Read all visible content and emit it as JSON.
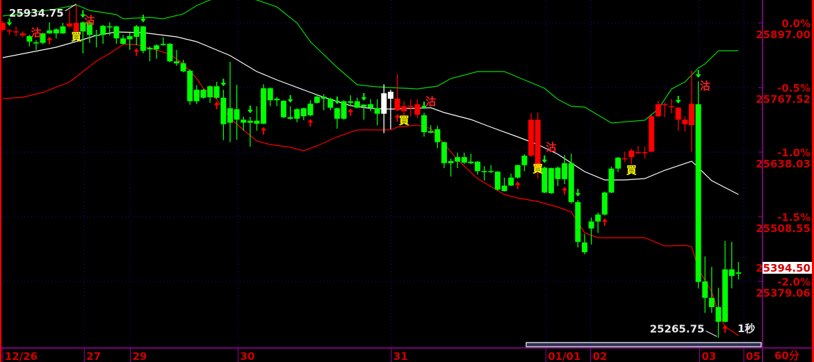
{
  "toolbar": {
    "timeframe_label": "60分",
    "tick_interval_label": "1秒"
  },
  "price_axis": {
    "levels": [
      {
        "pct": "0.0%",
        "price": "25897.00",
        "value": 25897.0
      },
      {
        "pct": "-0.5%",
        "price": "25767.52",
        "value": 25767.52
      },
      {
        "pct": "-1.0%",
        "price": "25638.03",
        "value": 25638.03
      },
      {
        "pct": "-1.5%",
        "price": "25508.55",
        "value": 25508.55
      },
      {
        "pct": "-2.0%",
        "price": "25379.06",
        "value": 25379.06
      }
    ],
    "current_price": "25394.50",
    "current_value": 25394.5
  },
  "chart_data": {
    "type": "candlestick",
    "ylim": [
      25246.7,
      25942.9
    ],
    "xlim": [
      -0.4,
      113.5
    ],
    "grid": true,
    "colors": {
      "up": "#ff0000",
      "down": "#00ff00",
      "special": "#ffffff",
      "upper_band": "#00dd00",
      "middle_band": "#ffffff",
      "lower_band": "#ff0000",
      "sell_label": "#ff2020",
      "buy_label": "#ffff00",
      "axis_text": "#d00000",
      "frame": "#a000a0",
      "grid": "#1010c0"
    },
    "date_labels": [
      {
        "label": "12/26",
        "index": 0
      },
      {
        "label": "27",
        "index": 12.2
      },
      {
        "label": "29",
        "index": 19.1
      },
      {
        "label": "30",
        "index": 35.2
      },
      {
        "label": "31",
        "index": 58.1
      },
      {
        "label": "01/01",
        "index": 81.2
      },
      {
        "label": "02",
        "index": 87.9
      },
      {
        "label": "03",
        "index": 104.2
      },
      {
        "label": "05",
        "index": 110.8
      }
    ],
    "candle_fields": [
      "open",
      "high",
      "low",
      "close"
    ],
    "candles": [
      [
        25883,
        25901,
        25880,
        25897
      ],
      [
        25881,
        25884,
        25873,
        25882
      ],
      [
        25879.5,
        25889,
        25870.5,
        25880
      ],
      [
        25872,
        25880,
        25868,
        25876
      ],
      [
        25870.5,
        25873,
        25850,
        25859.5
      ],
      [
        25858,
        25862,
        25843,
        25857
      ],
      [
        25876,
        25877,
        25854,
        25857
      ],
      [
        25882,
        25898,
        25875,
        25876
      ],
      [
        25884,
        25886,
        25866,
        25876
      ],
      [
        25890,
        25897,
        25875,
        25876
      ],
      [
        25890,
        25923,
        25887,
        25896
      ],
      [
        25880,
        25934.75,
        25879,
        25897
      ],
      [
        25898,
        25900,
        25836,
        25880
      ],
      [
        25898,
        25900,
        25857,
        25873
      ],
      [
        25873,
        25883,
        25848,
        25872
      ],
      [
        25891,
        25893,
        25855,
        25873
      ],
      [
        25890,
        25898,
        25872,
        25889
      ],
      [
        25890,
        25891,
        25855,
        25866
      ],
      [
        25866,
        25873,
        25854,
        25855
      ],
      [
        25870.5,
        25877,
        25843,
        25864
      ],
      [
        25890,
        25893,
        25852,
        25869
      ],
      [
        25890,
        25891,
        25836,
        25841
      ],
      [
        25847,
        25850,
        25820,
        25844
      ],
      [
        25852,
        25854,
        25825,
        25844
      ],
      [
        25855,
        25868,
        25851,
        25854
      ],
      [
        25855,
        25857,
        25818,
        25820
      ],
      [
        25820,
        25843,
        25811,
        25816
      ],
      [
        25816,
        25823,
        25798,
        25800
      ],
      [
        25801,
        25804,
        25733,
        25740
      ],
      [
        25763,
        25772,
        25734,
        25740
      ],
      [
        25763,
        25765,
        25745,
        25747
      ],
      [
        25770,
        25772,
        25737,
        25748
      ],
      [
        25770,
        25779,
        25745,
        25747
      ],
      [
        25747,
        25763,
        25662,
        25694
      ],
      [
        25726,
        25819,
        25658,
        25697
      ],
      [
        25724,
        25773,
        25663,
        25703
      ],
      [
        25703,
        25709,
        25681,
        25697
      ],
      [
        25701,
        25709,
        25649,
        25697
      ],
      [
        25701,
        25730,
        25681,
        25695
      ],
      [
        25766,
        25774,
        25694,
        25695
      ],
      [
        25766,
        25768,
        25730,
        25742
      ],
      [
        25745,
        25749,
        25730,
        25742
      ],
      [
        25741,
        25742,
        25706,
        25708
      ],
      [
        25708,
        25730,
        25703,
        25705
      ],
      [
        25724,
        25726,
        25698,
        25705
      ],
      [
        25726,
        25727,
        25702,
        25710
      ],
      [
        25735,
        25742,
        25710,
        25712
      ],
      [
        25749,
        25754,
        25735,
        25737
      ],
      [
        25749,
        25754,
        25722,
        25745
      ],
      [
        25745,
        25747,
        25722,
        25727
      ],
      [
        25726,
        25727,
        25685,
        25705
      ],
      [
        25740,
        25742,
        25703,
        25705
      ],
      [
        25740,
        25752,
        25731,
        25737
      ],
      [
        25740,
        25747,
        25726,
        25727
      ],
      [
        25733,
        25734,
        25703,
        25729
      ],
      [
        25734,
        25744,
        25720,
        25727
      ],
      [
        25726,
        25744,
        25692,
        25715
      ],
      [
        25715,
        25774,
        25676,
        25756
      ],
      [
        25745,
        25763,
        25684,
        25759
      ],
      [
        25722,
        25794,
        25720,
        25745
      ],
      [
        25720,
        25740,
        25709,
        25730
      ],
      [
        25730,
        25744,
        25710,
        25731
      ],
      [
        25713,
        25744,
        25706,
        25734
      ],
      [
        25712,
        25717,
        25669,
        25678
      ],
      [
        25680,
        25692,
        25676,
        25677
      ],
      [
        25684,
        25691,
        25646,
        25658
      ],
      [
        25658,
        25659,
        25606,
        25616
      ],
      [
        25620,
        25625,
        25589,
        25616
      ],
      [
        25628,
        25637,
        25606,
        25619
      ],
      [
        25628,
        25637,
        25614,
        25617
      ],
      [
        25619,
        25635,
        25614,
        25616
      ],
      [
        25619,
        25620,
        25593,
        25600
      ],
      [
        25600,
        25610,
        25581,
        25598
      ],
      [
        25600,
        25612,
        25596,
        25598
      ],
      [
        25599,
        25600,
        25561,
        25563
      ],
      [
        25571,
        25587,
        25559,
        25560
      ],
      [
        25587,
        25595,
        25570,
        25571
      ],
      [
        25612,
        25613,
        25585,
        25587
      ],
      [
        25631,
        25634,
        25600,
        25612
      ],
      [
        25631,
        25716,
        25628,
        25703
      ],
      [
        25606,
        25717,
        25585,
        25703
      ],
      [
        25607,
        25609,
        25556,
        25557
      ],
      [
        25606,
        25607,
        25554,
        25556
      ],
      [
        25607,
        25609,
        25570,
        25584
      ],
      [
        25616,
        25632,
        25574,
        25584
      ],
      [
        25616,
        25635,
        25535,
        25538
      ],
      [
        25538,
        25542,
        25447,
        25458
      ],
      [
        25457,
        25474,
        25433,
        25437.5
      ],
      [
        25499,
        25507,
        25453,
        25485
      ],
      [
        25513,
        25517,
        25476,
        25499
      ],
      [
        25557,
        25559,
        25511,
        25513
      ],
      [
        25605,
        25609,
        25556,
        25557
      ],
      [
        25627,
        25628,
        25598,
        25605
      ],
      [
        25625,
        25639,
        25618.5,
        25625.5
      ],
      [
        25628,
        25645,
        25614,
        25641
      ],
      [
        25637,
        25650.5,
        25635,
        25638
      ],
      [
        25637,
        25649,
        25625.5,
        25638
      ],
      [
        25639,
        25712,
        25638,
        25710
      ],
      [
        25710,
        25741,
        25708,
        25734
      ],
      [
        25733.5,
        25738,
        25708,
        25734
      ],
      [
        25729,
        25744,
        25716,
        25730
      ],
      [
        25703,
        25728.5,
        25681,
        25727
      ],
      [
        25694,
        25710,
        25680,
        25703
      ],
      [
        25692,
        25801,
        25639,
        25735
      ],
      [
        25734,
        25780,
        25365,
        25378
      ],
      [
        25379,
        25429,
        25316,
        25346
      ],
      [
        25346,
        25408,
        25316,
        25327.5
      ],
      [
        25327.5,
        25366.5,
        25265.75,
        25298
      ],
      [
        25403,
        25460,
        25297,
        25298
      ],
      [
        25403,
        25458,
        25365,
        25390
      ],
      [
        25397,
        25418,
        25383,
        25394.5
      ]
    ],
    "special_candles": [
      57,
      58
    ],
    "bands": {
      "upper": [
        [
          0,
          25910.9
        ],
        [
          5,
          25919.2
        ],
        [
          8,
          25924.8
        ],
        [
          11,
          25933.2
        ],
        [
          13,
          25922.0
        ],
        [
          17,
          25913.7
        ],
        [
          18,
          25905.3
        ],
        [
          22,
          25908.1
        ],
        [
          24,
          25905.3
        ],
        [
          27,
          25915.1
        ],
        [
          29,
          25931.8
        ],
        [
          31,
          25942.9
        ],
        [
          34,
          25956.8
        ],
        [
          38,
          25942.9
        ],
        [
          41,
          25929.0
        ],
        [
          44,
          25897.0
        ],
        [
          46,
          25859.4
        ],
        [
          50,
          25807.8
        ],
        [
          53,
          25773.0
        ],
        [
          56,
          25768.9
        ],
        [
          62,
          25764.7
        ],
        [
          65,
          25770.2
        ],
        [
          67,
          25785.6
        ],
        [
          71,
          25799.5
        ],
        [
          75,
          25799.5
        ],
        [
          78,
          25782.8
        ],
        [
          81,
          25766.1
        ],
        [
          83,
          25743.8
        ],
        [
          85,
          25729.9
        ],
        [
          87,
          25728.5
        ],
        [
          91,
          25696.5
        ],
        [
          96,
          25702.0
        ],
        [
          98,
          25724.3
        ],
        [
          100,
          25764.7
        ],
        [
          102,
          25778.6
        ],
        [
          104,
          25806.4
        ],
        [
          105,
          25814.8
        ],
        [
          107,
          25841.3
        ],
        [
          110,
          25841.3
        ]
      ],
      "middle": [
        [
          0,
          25827.3
        ],
        [
          8,
          25848.2
        ],
        [
          12,
          25863.5
        ],
        [
          14,
          25871.9
        ],
        [
          17,
          25878.9
        ],
        [
          21,
          25877.5
        ],
        [
          26,
          25869.1
        ],
        [
          29,
          25859.4
        ],
        [
          34,
          25831.5
        ],
        [
          38,
          25799.5
        ],
        [
          41,
          25782.8
        ],
        [
          46,
          25757.7
        ],
        [
          48,
          25748.0
        ],
        [
          52,
          25731.3
        ],
        [
          55,
          25725.7
        ],
        [
          58,
          25724.3
        ],
        [
          64,
          25727.1
        ],
        [
          66,
          25717.3
        ],
        [
          70,
          25703.4
        ],
        [
          73,
          25688.1
        ],
        [
          77,
          25668.6
        ],
        [
          80,
          25653.3
        ],
        [
          83,
          25633.8
        ],
        [
          87,
          25599.0
        ],
        [
          90,
          25582.3
        ],
        [
          93,
          25582.3
        ],
        [
          96,
          25585.1
        ],
        [
          99,
          25601.8
        ],
        [
          103,
          25619.9
        ],
        [
          106,
          25580.9
        ],
        [
          110,
          25553.1
        ]
      ],
      "lower": [
        [
          0,
          25745.2
        ],
        [
          3,
          25748.0
        ],
        [
          6,
          25757.7
        ],
        [
          10,
          25778.6
        ],
        [
          12,
          25799.5
        ],
        [
          14,
          25820.4
        ],
        [
          16,
          25835.7
        ],
        [
          18,
          25853.8
        ],
        [
          20,
          25853.8
        ],
        [
          23,
          25842.7
        ],
        [
          25,
          25834.3
        ],
        [
          27,
          25814.8
        ],
        [
          29,
          25785.6
        ],
        [
          30,
          25766.1
        ],
        [
          32,
          25743.8
        ],
        [
          34,
          25706.2
        ],
        [
          36,
          25682.5
        ],
        [
          38,
          25660.3
        ],
        [
          40,
          25653.3
        ],
        [
          43,
          25647.7
        ],
        [
          45,
          25640.8
        ],
        [
          47,
          25650.5
        ],
        [
          50,
          25668.6
        ],
        [
          53,
          25682.5
        ],
        [
          58,
          25682.5
        ],
        [
          59,
          25688.1
        ],
        [
          62,
          25692.3
        ],
        [
          64,
          25685.3
        ],
        [
          66,
          25654.7
        ],
        [
          68,
          25622.7
        ],
        [
          71,
          25585.1
        ],
        [
          75,
          25553.1
        ],
        [
          77,
          25546.1
        ],
        [
          80,
          25539.1
        ],
        [
          83,
          25528.0
        ],
        [
          85,
          25518.2
        ],
        [
          87,
          25476.4
        ],
        [
          89,
          25466.6
        ],
        [
          96,
          25466.6
        ],
        [
          99,
          25450.0
        ],
        [
          102,
          25451.3
        ],
        [
          103,
          25448.6
        ],
        [
          104,
          25404.0
        ],
        [
          106,
          25358.1
        ],
        [
          107,
          25316.4
        ],
        [
          108,
          25288.5
        ],
        [
          110,
          25270.4
        ]
      ]
    },
    "signals": {
      "sell_arrows": [
        1,
        12,
        21,
        33,
        37,
        43,
        50,
        54,
        63,
        81,
        86,
        101,
        104
      ],
      "buy_arrows": [
        7,
        20,
        32,
        39,
        46,
        52,
        59,
        77,
        84,
        90,
        108
      ],
      "sell_text": "沽",
      "buy_text": "買",
      "sell_labels": [
        {
          "index": 5,
          "price": 25879
        },
        {
          "index": 13,
          "price": 25904
        },
        {
          "index": 64,
          "price": 25741
        },
        {
          "index": 82,
          "price": 25649
        },
        {
          "index": 105,
          "price": 25772
        }
      ],
      "buy_labels": [
        {
          "index": 11,
          "price": 25870.5
        },
        {
          "index": 60,
          "price": 25703
        },
        {
          "index": 80,
          "price": 25606
        },
        {
          "index": 94,
          "price": 25603
        }
      ]
    },
    "annotations": {
      "max": {
        "label": "25934.75",
        "index": 11,
        "price": 25934.75
      },
      "min": {
        "label": "25265.75",
        "index": 107,
        "price": 25265.75
      }
    },
    "scrollbar_position": [
      0.69,
      1.0
    ]
  }
}
